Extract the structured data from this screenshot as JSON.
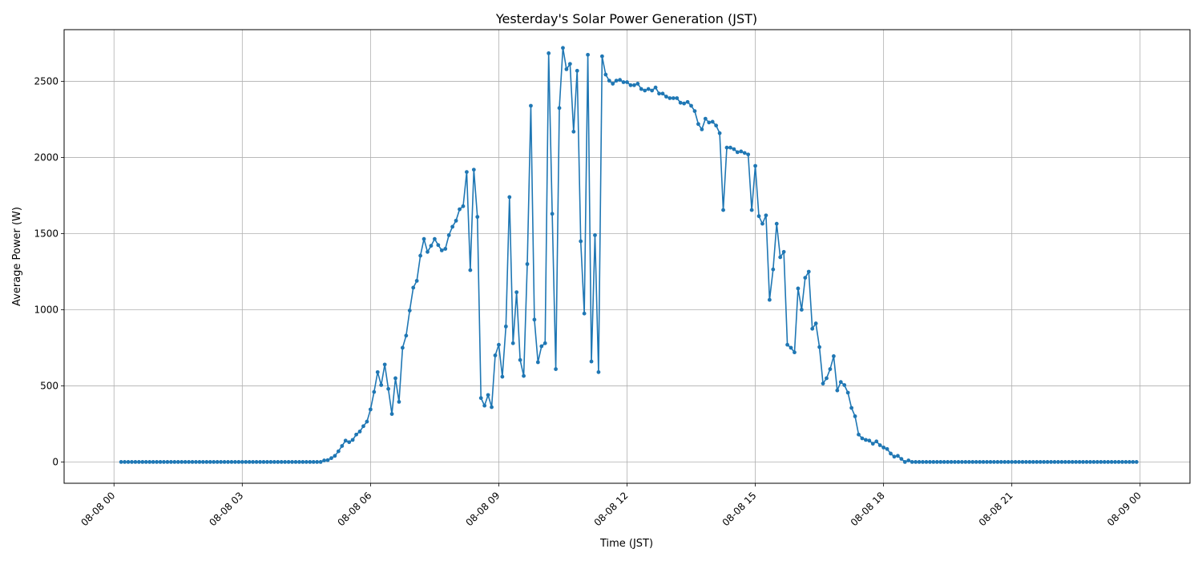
{
  "chart_data": {
    "type": "line",
    "title": "Yesterday's Solar Power Generation (JST)",
    "xlabel": "Time (JST)",
    "ylabel": "Average Power (W)",
    "x_start": "2024-08-08T00:00",
    "x_step_minutes": 5,
    "xlim": [
      "2024-08-07T22:50",
      "2024-08-09T01:10"
    ],
    "ylim": [
      -140,
      2840
    ],
    "xticks": [
      {
        "value": "2024-08-08T00:00",
        "label": "08-08 00"
      },
      {
        "value": "2024-08-08T03:00",
        "label": "08-08 03"
      },
      {
        "value": "2024-08-08T06:00",
        "label": "08-08 06"
      },
      {
        "value": "2024-08-08T09:00",
        "label": "08-08 09"
      },
      {
        "value": "2024-08-08T12:00",
        "label": "08-08 12"
      },
      {
        "value": "2024-08-08T15:00",
        "label": "08-08 15"
      },
      {
        "value": "2024-08-08T18:00",
        "label": "08-08 18"
      },
      {
        "value": "2024-08-08T21:00",
        "label": "08-08 21"
      },
      {
        "value": "2024-08-09T00:00",
        "label": "08-09 00"
      }
    ],
    "yticks": [
      0,
      500,
      1000,
      1500,
      2000,
      2500
    ],
    "grid": true,
    "color": "#1f77b4",
    "series": [
      {
        "values": [
          0,
          0,
          0,
          0,
          0,
          0,
          0,
          0,
          0,
          0,
          0,
          0,
          0,
          0,
          0,
          0,
          0,
          0,
          0,
          0,
          0,
          0,
          0,
          0,
          0,
          0,
          0,
          0,
          0,
          0,
          0,
          0,
          0,
          0,
          0,
          0,
          0,
          0,
          0,
          0,
          0,
          0,
          0,
          0,
          0,
          0,
          0,
          0,
          0,
          0,
          0,
          0,
          0,
          0,
          0,
          0,
          0,
          10,
          12,
          25,
          40,
          70,
          105,
          140,
          130,
          145,
          180,
          200,
          235,
          265,
          345,
          460,
          590,
          505,
          640,
          480,
          315,
          550,
          395,
          750,
          830,
          995,
          1145,
          1190,
          1355,
          1465,
          1380,
          1420,
          1465,
          1425,
          1390,
          1400,
          1490,
          1545,
          1585,
          1660,
          1680,
          1905,
          1260,
          1920,
          1610,
          420,
          370,
          440,
          360,
          700,
          770,
          560,
          890,
          1740,
          780,
          1115,
          670,
          565,
          1300,
          2340,
          935,
          655,
          760,
          780,
          2685,
          1630,
          610,
          2325,
          2720,
          2580,
          2615,
          2170,
          2570,
          1450,
          975,
          2675,
          660,
          1490,
          590,
          2665,
          2545,
          2505,
          2485,
          2505,
          2510,
          2495,
          2495,
          2475,
          2475,
          2485,
          2450,
          2440,
          2450,
          2440,
          2460,
          2420,
          2420,
          2400,
          2390,
          2390,
          2390,
          2360,
          2355,
          2365,
          2340,
          2305,
          2220,
          2185,
          2255,
          2230,
          2235,
          2210,
          2160,
          1655,
          2065,
          2065,
          2055,
          2035,
          2040,
          2030,
          2020,
          1655,
          1945,
          1615,
          1565,
          1620,
          1065,
          1265,
          1565,
          1345,
          1380,
          770,
          750,
          720,
          1140,
          1000,
          1210,
          1250,
          875,
          910,
          755,
          515,
          550,
          610,
          695,
          470,
          525,
          505,
          455,
          355,
          300,
          180,
          155,
          145,
          140,
          120,
          135,
          110,
          95,
          85,
          55,
          35,
          40,
          20,
          0,
          10,
          0,
          0,
          0,
          0,
          0,
          0,
          0,
          0,
          0,
          0,
          0,
          0,
          0,
          0,
          0,
          0,
          0,
          0,
          0,
          0,
          0,
          0,
          0,
          0,
          0,
          0,
          0,
          0,
          0,
          0,
          0,
          0,
          0,
          0,
          0,
          0,
          0,
          0,
          0,
          0,
          0,
          0,
          0,
          0,
          0,
          0,
          0,
          0,
          0,
          0,
          0,
          0,
          0,
          0,
          0,
          0,
          0,
          0,
          0,
          0,
          0,
          0,
          0,
          0
        ]
      }
    ]
  }
}
